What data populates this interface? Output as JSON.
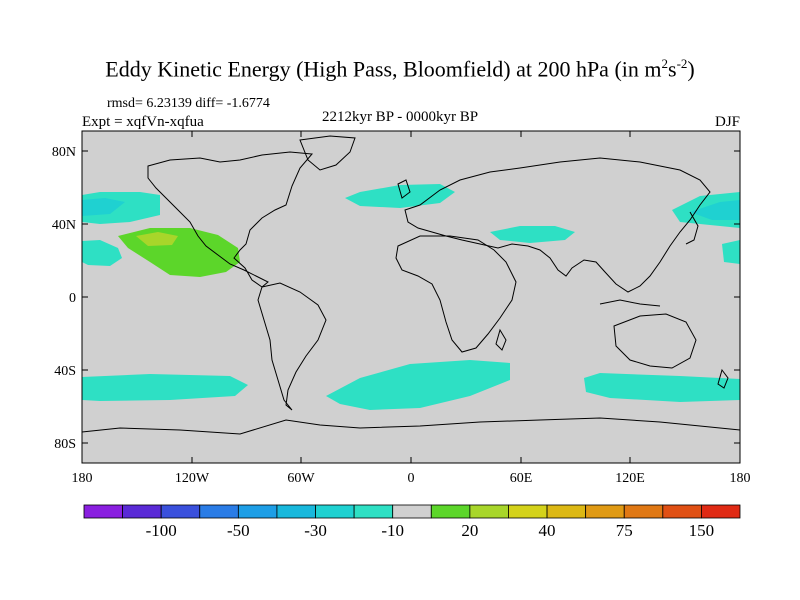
{
  "title": {
    "main": "Eddy Kinetic Energy (High Pass, Bloomfield) at 200 hPa (in m",
    "sup1": "2",
    "mid": "s",
    "sup2": "-2",
    "end": ")"
  },
  "stats": "rmsd= 6.23139 diff= -1.6774",
  "expt": "Expt = xqfVn-xqfua",
  "period": "2212kyr BP - 0000kyr BP",
  "season": "DJF",
  "lat_labels": [
    "80N",
    "40N",
    "0",
    "40S",
    "80S"
  ],
  "lon_labels": [
    "180",
    "120W",
    "60W",
    "0",
    "60E",
    "120E",
    "180"
  ],
  "colorbar": {
    "colors": [
      "#8a1fe0",
      "#5a2ad6",
      "#3a50dc",
      "#2a7ce6",
      "#1d9ee6",
      "#18b8dc",
      "#1fd1d1",
      "#2ee0c4",
      "#d0d0d0",
      "#5cd62a",
      "#a8d62a",
      "#d4d21a",
      "#dcb814",
      "#e09a14",
      "#e07814",
      "#e05014",
      "#e02a14"
    ],
    "labels": [
      "-100",
      "-50",
      "-30",
      "-10",
      "20",
      "40",
      "75",
      "150"
    ]
  },
  "fill_colors": {
    "ocean_bg": "#d0d0d0",
    "neg_light": "#2ee0c4",
    "neg_dark": "#1fd1d1",
    "pos_green": "#5cd62a",
    "pos_yellowgreen": "#a8d62a"
  }
}
